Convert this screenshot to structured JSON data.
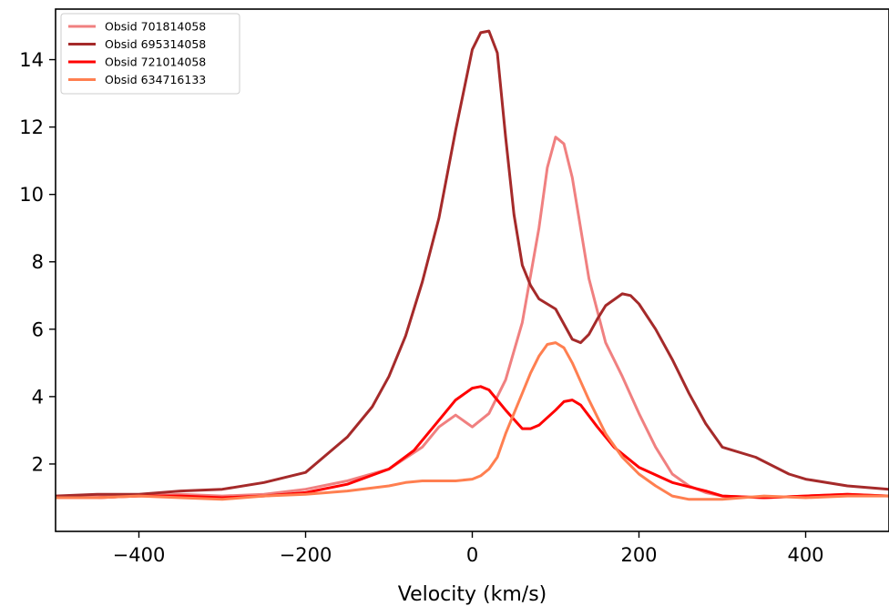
{
  "chart_data": {
    "type": "line",
    "title": "",
    "xlabel": "Velocity (km/s)",
    "ylabel": "",
    "xlim": [
      -500,
      500
    ],
    "ylim": [
      0.0,
      15.5
    ],
    "xticks": [
      -400,
      -200,
      0,
      200,
      400
    ],
    "xtick_labels": [
      "−400",
      "−200",
      "0",
      "200",
      "400"
    ],
    "yticks": [
      2,
      4,
      6,
      8,
      10,
      12,
      14
    ],
    "ytick_labels": [
      "2",
      "4",
      "6",
      "8",
      "10",
      "12",
      "14"
    ],
    "grid": false,
    "legend_position": "top-left",
    "series": [
      {
        "name": "Obsid 701814058",
        "color": "#f08080",
        "x": [
          -500,
          -450,
          -400,
          -350,
          -300,
          -250,
          -200,
          -150,
          -100,
          -60,
          -40,
          -20,
          0,
          20,
          40,
          60,
          80,
          90,
          100,
          110,
          120,
          140,
          160,
          180,
          200,
          220,
          240,
          260,
          280,
          300,
          350,
          400,
          450,
          500
        ],
        "y": [
          1.0,
          1.05,
          1.05,
          1.1,
          1.05,
          1.1,
          1.25,
          1.5,
          1.85,
          2.5,
          3.1,
          3.45,
          3.1,
          3.5,
          4.5,
          6.2,
          9.0,
          10.8,
          11.7,
          11.5,
          10.5,
          7.5,
          5.6,
          4.6,
          3.5,
          2.5,
          1.7,
          1.35,
          1.15,
          1.05,
          1.0,
          1.05,
          1.1,
          1.05
        ]
      },
      {
        "name": "Obsid 695314058",
        "color": "#a52a2a",
        "x": [
          -500,
          -450,
          -400,
          -350,
          -300,
          -250,
          -200,
          -150,
          -120,
          -100,
          -80,
          -60,
          -40,
          -20,
          0,
          10,
          20,
          30,
          40,
          50,
          60,
          70,
          80,
          100,
          120,
          130,
          140,
          150,
          160,
          180,
          190,
          200,
          220,
          240,
          260,
          280,
          300,
          340,
          380,
          400,
          450,
          500
        ],
        "y": [
          1.05,
          1.1,
          1.1,
          1.2,
          1.25,
          1.45,
          1.75,
          2.8,
          3.7,
          4.6,
          5.8,
          7.4,
          9.3,
          11.9,
          14.3,
          14.8,
          14.85,
          14.2,
          11.7,
          9.4,
          7.9,
          7.3,
          6.9,
          6.6,
          5.7,
          5.6,
          5.85,
          6.3,
          6.7,
          7.05,
          7.0,
          6.75,
          6.0,
          5.1,
          4.1,
          3.2,
          2.5,
          2.2,
          1.7,
          1.55,
          1.35,
          1.25
        ]
      },
      {
        "name": "Obsid 721014058",
        "color": "#ff0000",
        "x": [
          -500,
          -450,
          -400,
          -350,
          -300,
          -250,
          -200,
          -150,
          -100,
          -70,
          -40,
          -20,
          0,
          10,
          20,
          40,
          60,
          70,
          80,
          100,
          110,
          120,
          130,
          150,
          170,
          200,
          240,
          280,
          300,
          350,
          400,
          450,
          500
        ],
        "y": [
          1.0,
          1.0,
          1.05,
          1.05,
          1.0,
          1.05,
          1.15,
          1.4,
          1.85,
          2.4,
          3.3,
          3.9,
          4.25,
          4.3,
          4.2,
          3.6,
          3.05,
          3.05,
          3.15,
          3.6,
          3.85,
          3.9,
          3.75,
          3.1,
          2.5,
          1.9,
          1.45,
          1.2,
          1.05,
          1.0,
          1.05,
          1.1,
          1.05
        ]
      },
      {
        "name": "Obsid 634716133",
        "color": "#ff7f50",
        "x": [
          -500,
          -450,
          -400,
          -350,
          -300,
          -250,
          -200,
          -150,
          -100,
          -80,
          -60,
          -40,
          -20,
          0,
          10,
          20,
          30,
          40,
          60,
          70,
          80,
          90,
          100,
          110,
          120,
          140,
          160,
          180,
          200,
          220,
          240,
          260,
          280,
          300,
          350,
          400,
          450,
          500
        ],
        "y": [
          1.0,
          1.0,
          1.05,
          1.0,
          0.95,
          1.05,
          1.1,
          1.2,
          1.35,
          1.45,
          1.5,
          1.5,
          1.5,
          1.55,
          1.65,
          1.85,
          2.2,
          2.9,
          4.1,
          4.7,
          5.2,
          5.55,
          5.6,
          5.45,
          5.0,
          3.9,
          2.9,
          2.2,
          1.7,
          1.35,
          1.05,
          0.95,
          0.95,
          0.95,
          1.05,
          1.0,
          1.05,
          1.05
        ]
      }
    ]
  }
}
